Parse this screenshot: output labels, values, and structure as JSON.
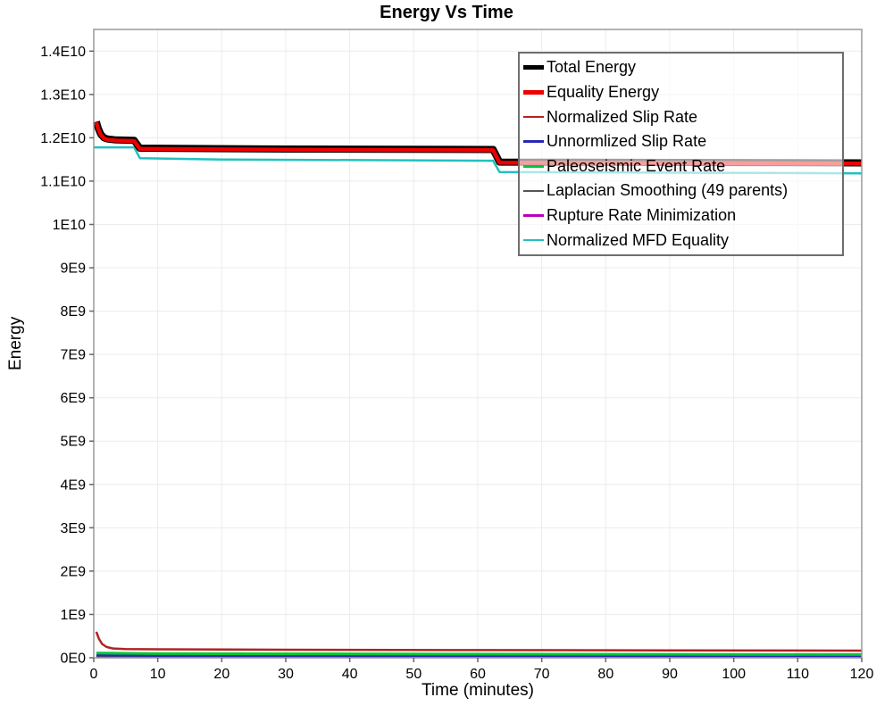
{
  "page": {
    "title": "Energy Vs Time"
  },
  "chart_data": {
    "type": "line",
    "title": "Energy Vs Time",
    "xlabel": "Time (minutes)",
    "ylabel": "Energy",
    "xlim": [
      0,
      120
    ],
    "ylim": [
      0,
      14500000000.0
    ],
    "grid": true,
    "legend_position": "inside-top-right",
    "x_ticks": [
      {
        "v": 0,
        "label": "0"
      },
      {
        "v": 10,
        "label": "10"
      },
      {
        "v": 20,
        "label": "20"
      },
      {
        "v": 30,
        "label": "30"
      },
      {
        "v": 40,
        "label": "40"
      },
      {
        "v": 50,
        "label": "50"
      },
      {
        "v": 60,
        "label": "60"
      },
      {
        "v": 70,
        "label": "70"
      },
      {
        "v": 80,
        "label": "80"
      },
      {
        "v": 90,
        "label": "90"
      },
      {
        "v": 100,
        "label": "100"
      },
      {
        "v": 110,
        "label": "110"
      },
      {
        "v": 120,
        "label": "120"
      }
    ],
    "y_ticks": [
      {
        "v": 0,
        "label": "0E0"
      },
      {
        "v": 1000000000.0,
        "label": "1E9"
      },
      {
        "v": 2000000000.0,
        "label": "2E9"
      },
      {
        "v": 3000000000.0,
        "label": "3E9"
      },
      {
        "v": 4000000000.0,
        "label": "4E9"
      },
      {
        "v": 5000000000.0,
        "label": "5E9"
      },
      {
        "v": 6000000000.0,
        "label": "6E9"
      },
      {
        "v": 7000000000.0,
        "label": "7E9"
      },
      {
        "v": 8000000000.0,
        "label": "8E9"
      },
      {
        "v": 9000000000.0,
        "label": "9E9"
      },
      {
        "v": 10000000000.0,
        "label": "1E10"
      },
      {
        "v": 11000000000.0,
        "label": "1.1E10"
      },
      {
        "v": 12000000000.0,
        "label": "1.2E10"
      },
      {
        "v": 13000000000.0,
        "label": "1.3E10"
      },
      {
        "v": 14000000000.0,
        "label": "1.4E10"
      }
    ],
    "legend": {
      "entries": [
        {
          "label": "Total Energy",
          "color": "#000000",
          "thickness": 5
        },
        {
          "label": "Equality Energy",
          "color": "#ee0000",
          "thickness": 5
        },
        {
          "label": "Normalized Slip Rate",
          "color": "#b22222",
          "thickness": 2.5
        },
        {
          "label": "Unnormlized Slip Rate",
          "color": "#2828b4",
          "thickness": 2.5
        },
        {
          "label": "Paleoseismic Event Rate",
          "color": "#00c832",
          "thickness": 2.5
        },
        {
          "label": "Laplacian Smoothing (49 parents)",
          "color": "#555555",
          "thickness": 2.5
        },
        {
          "label": "Rupture Rate Minimization",
          "color": "#bb00bb",
          "thickness": 2.5
        },
        {
          "label": "Normalized MFD Equality",
          "color": "#22c0c0",
          "thickness": 2.5
        }
      ]
    },
    "series": [
      {
        "name": "normalized-mfd-equality",
        "label": "Normalized MFD Equality",
        "color": "#22c0c0",
        "width": 2.5,
        "points": [
          [
            0,
            11780000000.0
          ],
          [
            6.3,
            11780000000.0
          ],
          [
            7.2,
            11530000000.0
          ],
          [
            20,
            11500000000.0
          ],
          [
            62.4,
            11470000000.0
          ],
          [
            63.4,
            11210000000.0
          ],
          [
            120,
            11180000000.0
          ]
        ]
      },
      {
        "name": "rupture-rate-minimization",
        "label": "Rupture Rate Minimization",
        "color": "#bb00bb",
        "width": 2.5,
        "points": [
          [
            0.4,
            13000000.0
          ],
          [
            120,
            12000000.0
          ]
        ]
      },
      {
        "name": "laplacian-smoothing",
        "label": "Laplacian Smoothing (49 parents)",
        "color": "#555555",
        "width": 2.5,
        "points": [
          [
            0.4,
            30000000.0
          ],
          [
            120,
            26000000.0
          ]
        ]
      },
      {
        "name": "unnormalized-slip-rate",
        "label": "Unnormlized Slip Rate",
        "color": "#2828b4",
        "width": 2.5,
        "points": [
          [
            0.4,
            55000000.0
          ],
          [
            10,
            50000000.0
          ],
          [
            120,
            44000000.0
          ]
        ]
      },
      {
        "name": "paleoseismic-event-rate",
        "label": "Paleoseismic Event Rate",
        "color": "#00c832",
        "width": 3,
        "points": [
          [
            0.4,
            110000000.0
          ],
          [
            10,
            95000000.0
          ],
          [
            60,
            85000000.0
          ],
          [
            120,
            75000000.0
          ]
        ]
      },
      {
        "name": "normalized-slip-rate",
        "label": "Normalized Slip Rate",
        "color": "#b22222",
        "width": 2.5,
        "points": [
          [
            0.4,
            600000000.0
          ],
          [
            0.8,
            440000000.0
          ],
          [
            1.3,
            320000000.0
          ],
          [
            2,
            250000000.0
          ],
          [
            3,
            215000000.0
          ],
          [
            5,
            200000000.0
          ],
          [
            10,
            195000000.0
          ],
          [
            30,
            185000000.0
          ],
          [
            60,
            178000000.0
          ],
          [
            90,
            170000000.0
          ],
          [
            120,
            165000000.0
          ]
        ]
      },
      {
        "name": "total-energy",
        "label": "Total Energy",
        "color": "#000000",
        "width": 8,
        "points": [
          [
            0.4,
            12370000000.0
          ],
          [
            0.7,
            12220000000.0
          ],
          [
            1.1,
            12080000000.0
          ],
          [
            1.6,
            12000000000.0
          ],
          [
            2.2,
            11970000000.0
          ],
          [
            3.5,
            11950000000.0
          ],
          [
            6.3,
            11940000000.0
          ],
          [
            7.2,
            11760000000.0
          ],
          [
            30,
            11740000000.0
          ],
          [
            62.4,
            11730000000.0
          ],
          [
            63.4,
            11440000000.0
          ],
          [
            100,
            11430000000.0
          ],
          [
            120,
            11420000000.0
          ]
        ]
      },
      {
        "name": "equality-energy",
        "label": "Equality Energy",
        "color": "#ee0000",
        "width": 4.5,
        "points": [
          [
            0.4,
            12355000000.0
          ],
          [
            0.7,
            12205000000.0
          ],
          [
            1.1,
            12065000000.0
          ],
          [
            1.6,
            11985000000.0
          ],
          [
            2.2,
            11955000000.0
          ],
          [
            3.5,
            11935000000.0
          ],
          [
            6.3,
            11925000000.0
          ],
          [
            7.2,
            11745000000.0
          ],
          [
            30,
            11725000000.0
          ],
          [
            62.4,
            11715000000.0
          ],
          [
            63.4,
            11425000000.0
          ],
          [
            100,
            11415000000.0
          ],
          [
            120,
            11405000000.0
          ]
        ]
      }
    ],
    "plot_colors": {
      "grid": "#ececec",
      "border": "#9a9a9a",
      "tick": "#666666"
    }
  }
}
